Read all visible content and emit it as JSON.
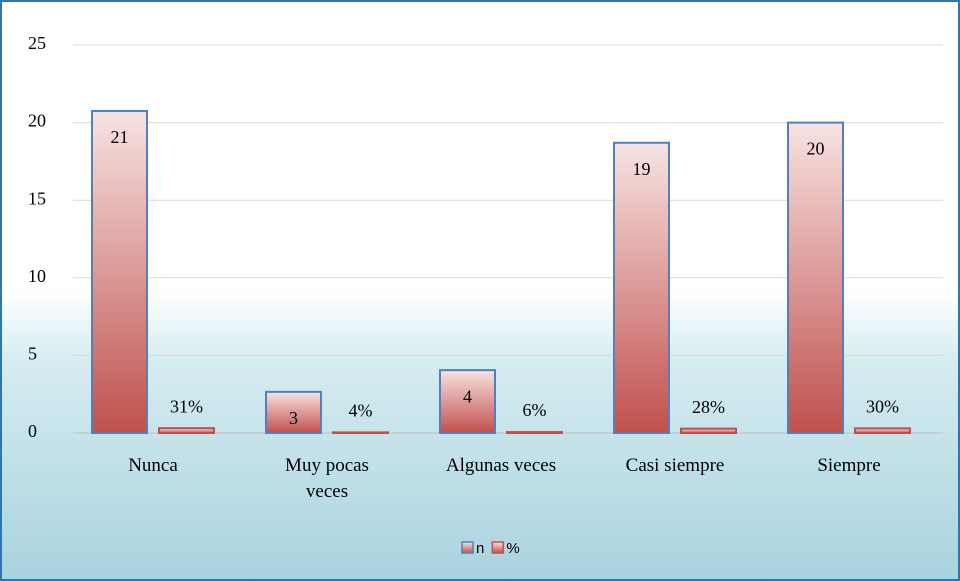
{
  "chart_data": {
    "type": "bar",
    "categories": [
      "Nunca",
      "Muy pocas veces",
      "Algunas veces",
      "Casi siempre",
      "Siempre"
    ],
    "series": [
      {
        "name": "n",
        "color": "#4f81bd",
        "values": [
          20.75,
          2.65,
          4.05,
          18.7,
          20
        ],
        "value_labels": [
          "21",
          "3",
          "4",
          "19",
          "20"
        ]
      },
      {
        "name": "%",
        "color": "#c0504d",
        "values": [
          0.31,
          0.04,
          0.06,
          0.28,
          0.3
        ],
        "value_labels": [
          "31%",
          "4%",
          "6%",
          "28%",
          "30%"
        ]
      }
    ],
    "ylim": [
      0,
      25
    ],
    "yticks": [
      0,
      5,
      10,
      15,
      20,
      25
    ],
    "grid": true,
    "legend": "bottom"
  }
}
